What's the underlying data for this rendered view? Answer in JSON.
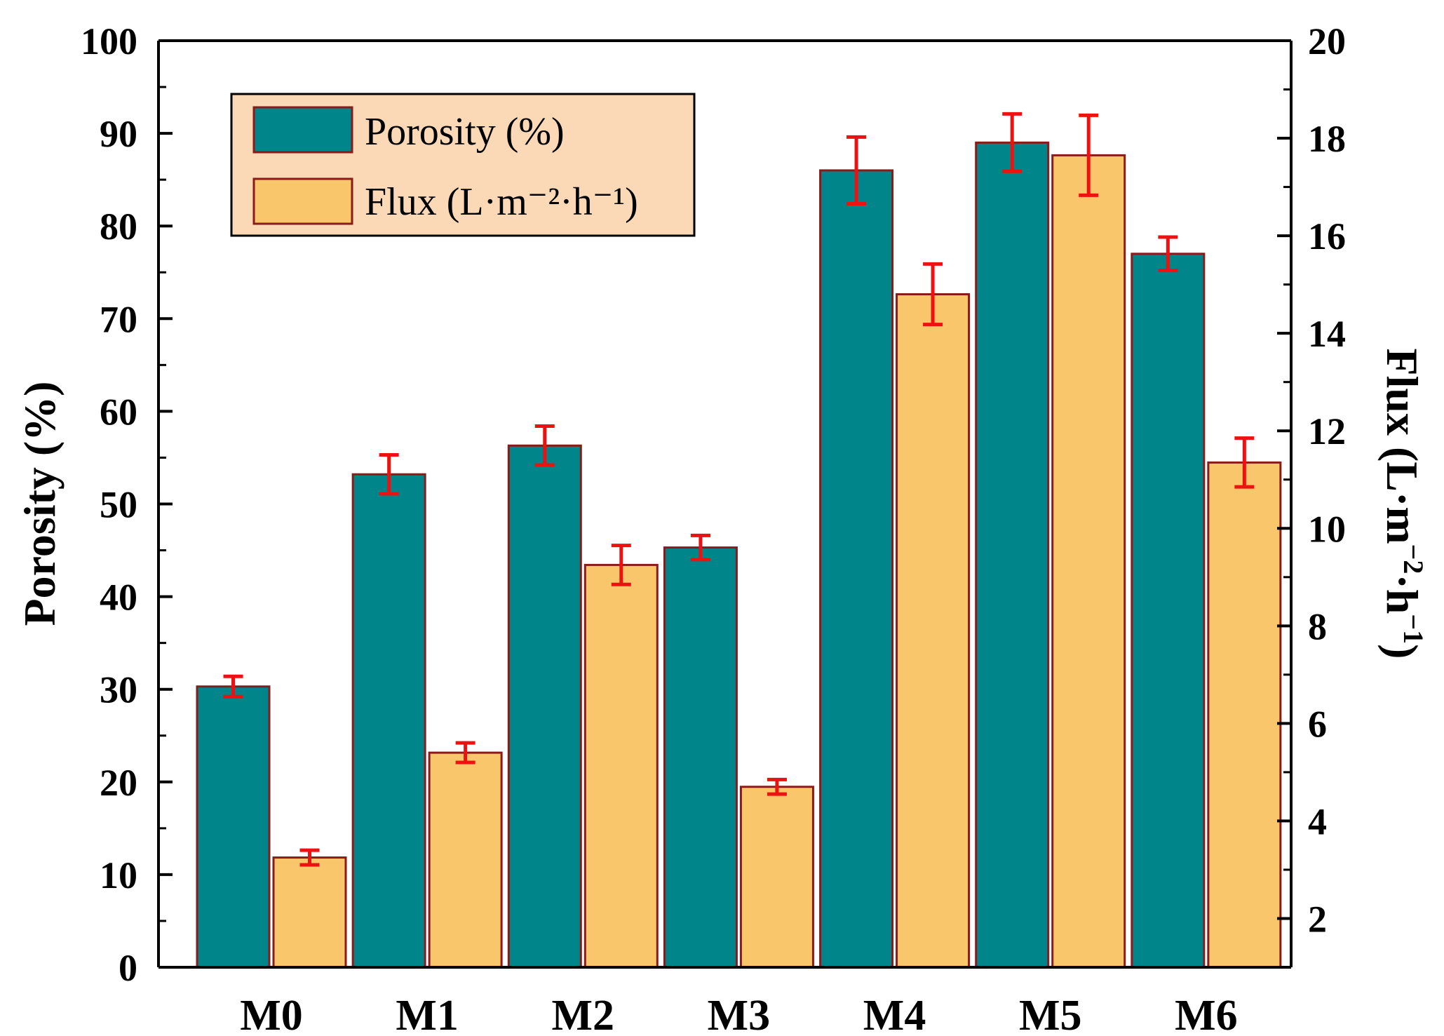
{
  "chart_data": {
    "type": "bar",
    "categories": [
      "M0",
      "M1",
      "M2",
      "M3",
      "M4",
      "M5",
      "M6"
    ],
    "series": [
      {
        "name": "Porosity (%)",
        "axis": "left",
        "values": [
          30.3,
          53.2,
          56.3,
          45.3,
          86.0,
          89.0,
          77.0
        ],
        "errors": [
          1.1,
          2.1,
          2.1,
          1.3,
          3.6,
          3.1,
          1.8
        ],
        "color": "#00868a"
      },
      {
        "name": "Flux (L·m⁻²·h⁻¹)",
        "axis": "right",
        "values": [
          3.25,
          5.4,
          9.25,
          4.7,
          14.8,
          17.65,
          11.35
        ],
        "errors": [
          0.15,
          0.2,
          0.4,
          0.15,
          0.62,
          0.82,
          0.5
        ],
        "color": "#f9c66b"
      }
    ],
    "ylabel": "Porosity (%)",
    "y2label_parts": {
      "base": "Flux (L·m",
      "sup1": "−2",
      "mid": "·h",
      "sup2": "−1",
      "end": ")"
    },
    "ylim": [
      0,
      100
    ],
    "y2lim": [
      1,
      20
    ],
    "yticks": [
      0,
      10,
      20,
      30,
      40,
      50,
      60,
      70,
      80,
      90,
      100
    ],
    "y2ticks": [
      2,
      4,
      6,
      8,
      10,
      12,
      14,
      16,
      18,
      20
    ],
    "legend_position": "top-left",
    "bar_edge_color": "#8b1a1a",
    "error_color": "#ee1111",
    "legend_bg": "#fcd9b6"
  }
}
